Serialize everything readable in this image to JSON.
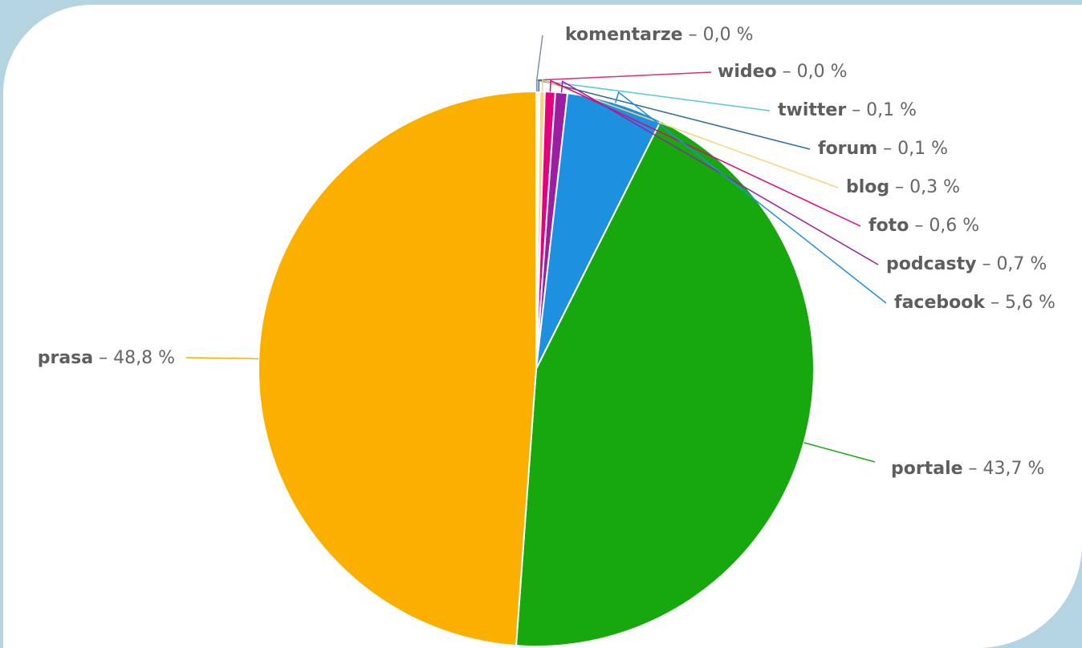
{
  "chart_data": {
    "type": "pie",
    "slices": [
      {
        "name": "komentarze",
        "value": 0.0,
        "label": "komentarze – 0,0 %",
        "color": "#7e8fb0"
      },
      {
        "name": "wideo",
        "value": 0.0,
        "label": "wideo – 0,0 %",
        "color": "#d6307a"
      },
      {
        "name": "twitter",
        "value": 0.1,
        "label": "twitter – 0,1 %",
        "color": "#55c8e0"
      },
      {
        "name": "forum",
        "value": 0.1,
        "label": "forum – 0,1 %",
        "color": "#2f6f9a"
      },
      {
        "name": "blog",
        "value": 0.3,
        "label": "blog – 0,3 %",
        "color": "#f8d37a"
      },
      {
        "name": "foto",
        "value": 0.6,
        "label": "foto – 0,6 %",
        "color": "#e6007e"
      },
      {
        "name": "podcasty",
        "value": 0.7,
        "label": "podcasty – 0,7 %",
        "color": "#9b1fa0"
      },
      {
        "name": "facebook",
        "value": 5.6,
        "label": "facebook – 5,6 %",
        "color": "#1e90e0"
      },
      {
        "name": "portale",
        "value": 43.7,
        "label": "portale – 43,7 %",
        "color": "#17a80e"
      },
      {
        "name": "prasa",
        "value": 48.8,
        "label": "prasa – 48,8 %",
        "color": "#fbb000"
      }
    ]
  }
}
